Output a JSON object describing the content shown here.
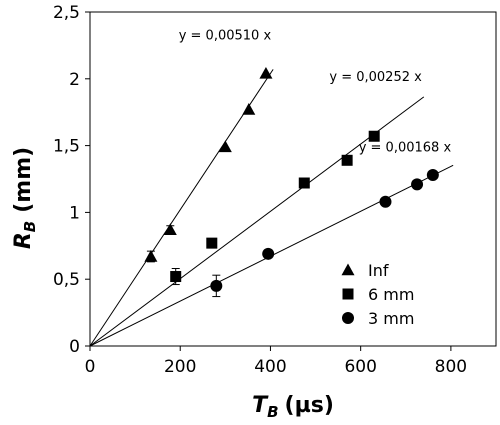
{
  "chart_data": {
    "type": "scatter",
    "xlabel_main": "T",
    "xlabel_sub": "B",
    "xlabel_unit": "(µs)",
    "ylabel_main": "R",
    "ylabel_sub": "B",
    "ylabel_unit": "(mm)",
    "xlim": [
      0,
      900
    ],
    "ylim": [
      0,
      2.5
    ],
    "xticks": [
      0,
      200,
      400,
      600,
      800
    ],
    "xtick_labels": [
      "0",
      "200",
      "400",
      "600",
      "800"
    ],
    "yticks": [
      0,
      0.5,
      1,
      1.5,
      2,
      2.5
    ],
    "ytick_labels": [
      "0",
      "0,5",
      "1",
      "1,5",
      "2",
      "2,5"
    ],
    "grid": false,
    "legend_position": "lower-right",
    "series": [
      {
        "name": "Inf",
        "marker": "triangle",
        "points": [
          {
            "x": 135,
            "y": 0.67,
            "err": 0.04
          },
          {
            "x": 178,
            "y": 0.87,
            "err": 0.03
          },
          {
            "x": 300,
            "y": 1.49
          },
          {
            "x": 352,
            "y": 1.77
          },
          {
            "x": 390,
            "y": 2.04
          }
        ],
        "fit": {
          "slope": 0.0051,
          "x_end": 406,
          "label": "y = 0,00510 x"
        }
      },
      {
        "name": "6 mm",
        "marker": "square",
        "points": [
          {
            "x": 190,
            "y": 0.52,
            "err": 0.06
          },
          {
            "x": 270,
            "y": 0.77
          },
          {
            "x": 475,
            "y": 1.22
          },
          {
            "x": 570,
            "y": 1.39
          },
          {
            "x": 630,
            "y": 1.57
          }
        ],
        "fit": {
          "slope": 0.00252,
          "x_end": 740,
          "label": "y = 0,00252 x"
        }
      },
      {
        "name": "3 mm",
        "marker": "circle",
        "points": [
          {
            "x": 280,
            "y": 0.45,
            "err": 0.08
          },
          {
            "x": 395,
            "y": 0.69,
            "err": 0.03
          },
          {
            "x": 655,
            "y": 1.08
          },
          {
            "x": 725,
            "y": 1.21
          },
          {
            "x": 760,
            "y": 1.28
          }
        ],
        "fit": {
          "slope": 0.00168,
          "x_end": 805,
          "label": "y = 0,00168 x"
        }
      }
    ]
  }
}
